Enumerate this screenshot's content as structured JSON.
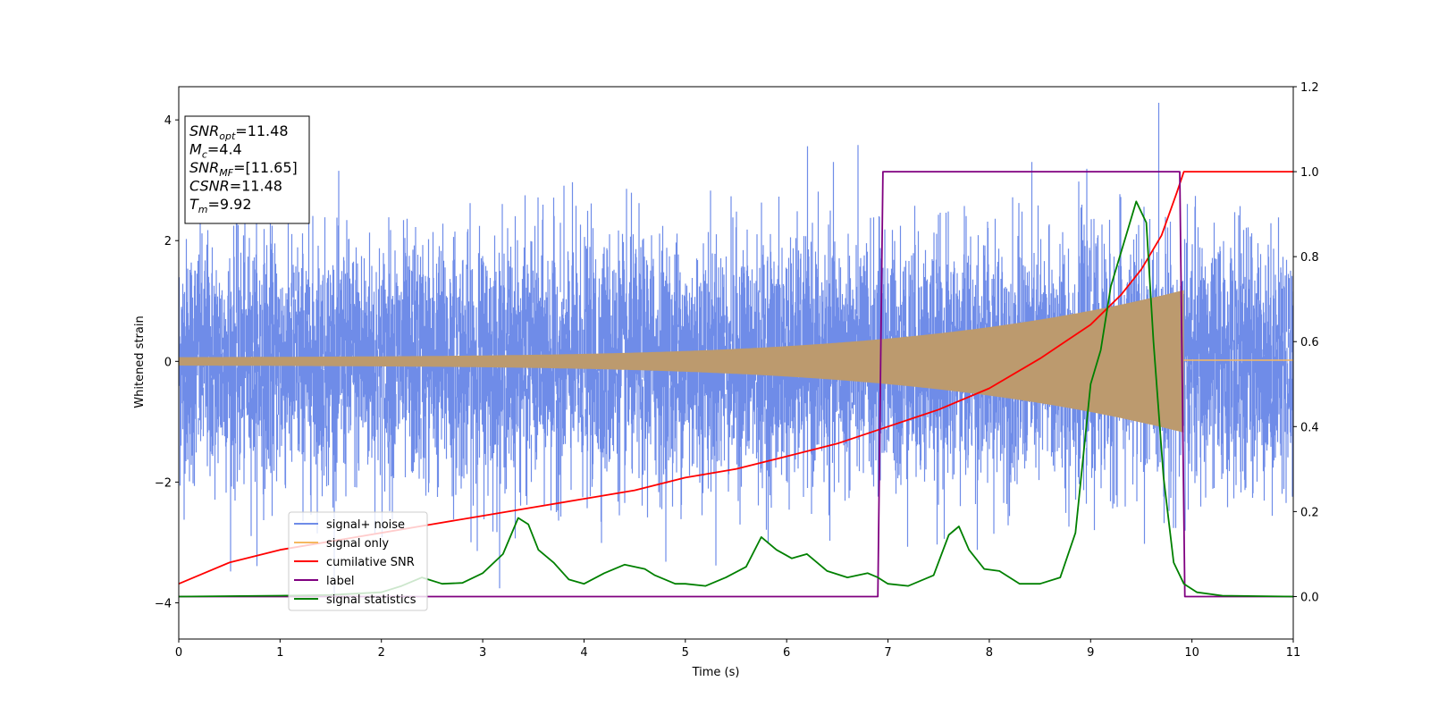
{
  "chart_data": {
    "type": "line",
    "title": "",
    "xlabel": "Time (s)",
    "ylabel": "Whitened strain",
    "xlim": [
      0,
      11
    ],
    "ylim": [
      -4.6,
      4.55
    ],
    "y2lim": [
      -0.1,
      1.2
    ],
    "xticks": [
      0,
      1,
      2,
      3,
      4,
      5,
      6,
      7,
      8,
      9,
      10,
      11
    ],
    "yticks": [
      -4,
      -2,
      0,
      2,
      4
    ],
    "y2ticks": [
      "0.0",
      "0.2",
      "0.4",
      "0.6",
      "0.8",
      "1.0",
      "1.2"
    ],
    "legend_position": "lower-left",
    "grid": false,
    "info_box": [
      {
        "sym": "SNR",
        "sub": "opt",
        "val": "=11.48"
      },
      {
        "sym": "M",
        "sub": "c",
        "val": "=4.4"
      },
      {
        "sym": "SNR",
        "sub": "MF",
        "val": "=[11.65]"
      },
      {
        "sym": "CSNR",
        "sub": "",
        "val": "=11.48"
      },
      {
        "sym": "T",
        "sub": "m",
        "val": "=9.92"
      }
    ],
    "series": [
      {
        "name": "signal+ noise",
        "color": "#6f8ce8",
        "axis": "left",
        "kind": "noise",
        "sigma": 1.0,
        "t_end": 11.0
      },
      {
        "name": "signal only",
        "color": "#f5b860",
        "axis": "left",
        "kind": "chirp",
        "t_merge": 9.92,
        "amp_start": 0.07,
        "amp_end": 1.1
      },
      {
        "name": "cumilative SNR",
        "color": "#ff0000",
        "axis": "right",
        "points": [
          [
            0,
            0.03
          ],
          [
            0.5,
            0.08
          ],
          [
            1,
            0.11
          ],
          [
            1.5,
            0.13
          ],
          [
            2,
            0.15
          ],
          [
            2.5,
            0.17
          ],
          [
            3,
            0.19
          ],
          [
            3.5,
            0.21
          ],
          [
            4,
            0.23
          ],
          [
            4.5,
            0.25
          ],
          [
            5,
            0.28
          ],
          [
            5.5,
            0.3
          ],
          [
            6,
            0.33
          ],
          [
            6.5,
            0.36
          ],
          [
            7,
            0.4
          ],
          [
            7.5,
            0.44
          ],
          [
            8,
            0.49
          ],
          [
            8.5,
            0.56
          ],
          [
            9,
            0.64
          ],
          [
            9.3,
            0.71
          ],
          [
            9.5,
            0.77
          ],
          [
            9.7,
            0.85
          ],
          [
            9.85,
            0.95
          ],
          [
            9.92,
            1.0
          ],
          [
            11,
            1.0
          ]
        ]
      },
      {
        "name": "label",
        "color": "#800080",
        "axis": "right",
        "points": [
          [
            0,
            0
          ],
          [
            6.9,
            0
          ],
          [
            6.95,
            1
          ],
          [
            9.88,
            1
          ],
          [
            9.93,
            0
          ],
          [
            11,
            0
          ]
        ]
      },
      {
        "name": "signal statistics",
        "color": "#008000",
        "axis": "right",
        "points": [
          [
            0,
            0.0
          ],
          [
            1,
            0.002
          ],
          [
            1.5,
            0.004
          ],
          [
            2,
            0.01
          ],
          [
            2.2,
            0.025
          ],
          [
            2.4,
            0.045
          ],
          [
            2.6,
            0.03
          ],
          [
            2.8,
            0.032
          ],
          [
            3,
            0.055
          ],
          [
            3.2,
            0.1
          ],
          [
            3.35,
            0.185
          ],
          [
            3.45,
            0.17
          ],
          [
            3.55,
            0.11
          ],
          [
            3.7,
            0.08
          ],
          [
            3.85,
            0.04
          ],
          [
            4,
            0.03
          ],
          [
            4.2,
            0.055
          ],
          [
            4.4,
            0.075
          ],
          [
            4.6,
            0.065
          ],
          [
            4.7,
            0.05
          ],
          [
            4.9,
            0.03
          ],
          [
            5,
            0.03
          ],
          [
            5.2,
            0.025
          ],
          [
            5.4,
            0.045
          ],
          [
            5.6,
            0.07
          ],
          [
            5.75,
            0.14
          ],
          [
            5.9,
            0.11
          ],
          [
            6.05,
            0.09
          ],
          [
            6.2,
            0.1
          ],
          [
            6.4,
            0.06
          ],
          [
            6.6,
            0.045
          ],
          [
            6.8,
            0.055
          ],
          [
            6.9,
            0.045
          ],
          [
            7,
            0.03
          ],
          [
            7.2,
            0.025
          ],
          [
            7.45,
            0.05
          ],
          [
            7.6,
            0.145
          ],
          [
            7.7,
            0.165
          ],
          [
            7.8,
            0.11
          ],
          [
            7.95,
            0.065
          ],
          [
            8.1,
            0.06
          ],
          [
            8.3,
            0.03
          ],
          [
            8.5,
            0.03
          ],
          [
            8.7,
            0.045
          ],
          [
            8.85,
            0.15
          ],
          [
            9.0,
            0.5
          ],
          [
            9.1,
            0.58
          ],
          [
            9.2,
            0.73
          ],
          [
            9.35,
            0.85
          ],
          [
            9.45,
            0.93
          ],
          [
            9.55,
            0.88
          ],
          [
            9.62,
            0.6
          ],
          [
            9.72,
            0.28
          ],
          [
            9.82,
            0.08
          ],
          [
            9.92,
            0.03
          ],
          [
            10.05,
            0.01
          ],
          [
            10.3,
            0.002
          ],
          [
            11,
            0.0
          ]
        ]
      }
    ]
  }
}
